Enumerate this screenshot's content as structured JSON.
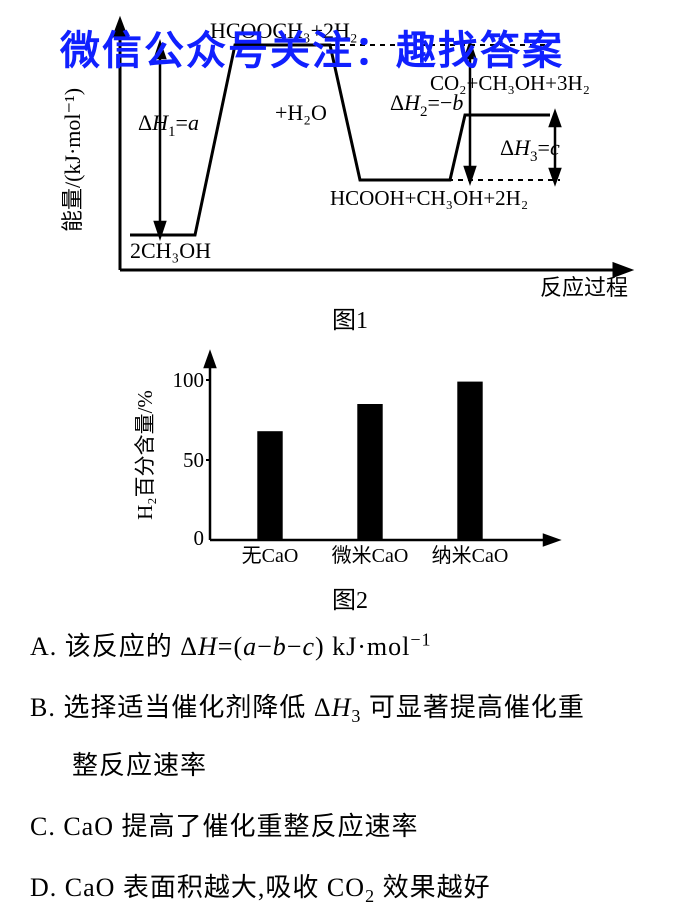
{
  "watermark": "微信公众号关注：趣找答案",
  "fig1": {
    "caption": "图1",
    "y_axis": "能量/(kJ·mol)",
    "y_axis_super": "-1",
    "x_axis": "反应过程",
    "colors": {
      "line": "#000000",
      "bg": "#ffffff"
    },
    "line_width": 2.5,
    "states": {
      "start_label": "2CH₃OH",
      "top_label": "HCOOCH₃+2H₂",
      "plus_h2o": "+H₂O",
      "mid_label": "HCOOH+CH₃OH+2H₂",
      "end_label": "CO₂+CH₃OH+3H₂",
      "dH1": "ΔH₁=a",
      "dH2": "ΔH₂=-b",
      "dH3": "ΔH₃=c"
    }
  },
  "fig2": {
    "caption": "图2",
    "type": "bar",
    "y_label": "H₂百分含量/%",
    "categories": [
      "无CaO",
      "微米CaO",
      "纳米CaO"
    ],
    "values": [
      68,
      85,
      99
    ],
    "ylim": [
      0,
      100
    ],
    "yticks": [
      0,
      50,
      100
    ],
    "bar_color": "#000000",
    "axis_color": "#000000",
    "bar_width": 0.22,
    "font_size_axis": 20
  },
  "options": {
    "A_pre": "A. 该反应的 Δ",
    "A_H": "H",
    "A_mid": "=(",
    "A_a": "a",
    "A_m1": "−",
    "A_b": "b",
    "A_m2": "−",
    "A_c": "c",
    "A_post1": ") kJ·mol",
    "A_sup": "−1",
    "B_pre": "B. 选择适当催化剂降低 Δ",
    "B_H": "H",
    "B_sub3": "3",
    "B_post": " 可显著提高催化重",
    "B_line2": "整反应速率",
    "C": "C. CaO 提高了催化重整反应速率",
    "D_pre": "D. CaO 表面积越大,吸收 CO",
    "D_sub2": "2",
    "D_post": " 效果越好"
  }
}
